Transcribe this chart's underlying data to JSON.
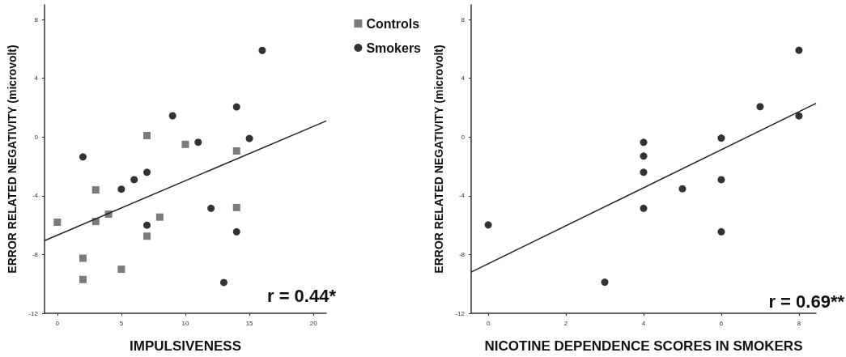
{
  "chart_data": [
    {
      "type": "scatter",
      "xlabel": "IMPULSIVENESS",
      "ylabel": "ERROR RELATED NEGATIVITY (microvolt)",
      "xlim": [
        -1,
        21
      ],
      "xticks": [
        0,
        5,
        10,
        15,
        20
      ],
      "ylim": [
        -12,
        9
      ],
      "yticks": [
        -12,
        -8,
        -4,
        0,
        4,
        8
      ],
      "grid": false,
      "legend": "top right",
      "annotations": [
        "r = 0.44*"
      ],
      "series": [
        {
          "name": "Controls",
          "color": "#5a5a5a",
          "marker": "square",
          "x": [
            0,
            2,
            2,
            3,
            3,
            4,
            5,
            7,
            7,
            8,
            10,
            14,
            14
          ],
          "values": [
            -5.8,
            -8.25,
            -9.7,
            -3.6,
            -5.75,
            -5.25,
            -9.0,
            0.1,
            -6.75,
            -5.45,
            -0.5,
            -0.95,
            -4.8
          ]
        },
        {
          "name": "Smokers",
          "color": "#000000",
          "marker": "circle",
          "x": [
            2,
            5,
            6,
            7,
            7,
            9,
            11,
            12,
            13,
            14,
            14,
            15,
            16
          ],
          "values": [
            -1.35,
            -3.55,
            -2.9,
            -2.4,
            -6.0,
            1.45,
            -0.35,
            -4.85,
            -9.9,
            2.05,
            -6.45,
            -0.1,
            5.9
          ]
        },
        {
          "type": "line",
          "color": "#222222",
          "marker": "none",
          "x": [
            -1,
            21
          ],
          "values": [
            -7.05,
            1.1
          ]
        }
      ]
    },
    {
      "type": "scatter",
      "xlabel": "NICOTINE DEPENDENCE SCORES IN SMOKERS",
      "ylabel": "ERROR RELATED NEGATIVITY (microvolt)",
      "xlim": [
        -0.44,
        8.44
      ],
      "xticks": [
        0,
        2,
        4,
        6,
        8
      ],
      "ylim": [
        -12,
        9
      ],
      "yticks": [
        -12,
        -8,
        -4,
        0,
        4,
        8
      ],
      "grid": false,
      "legend": false,
      "annotations": [
        "r = 0.69**"
      ],
      "series": [
        {
          "color": "#000000",
          "marker": "circle",
          "x": [
            0,
            3,
            4,
            4,
            4,
            4,
            5,
            6,
            6,
            6,
            7,
            8,
            8
          ],
          "values": [
            -5.98,
            -9.88,
            -0.36,
            -1.3,
            -2.4,
            -4.85,
            -3.52,
            -0.07,
            -2.9,
            -6.45,
            2.07,
            5.91,
            1.44
          ]
        },
        {
          "type": "line",
          "color": "#222222",
          "marker": "none",
          "x": [
            -0.44,
            8.44
          ],
          "values": [
            -9.2,
            2.3
          ]
        }
      ]
    }
  ]
}
